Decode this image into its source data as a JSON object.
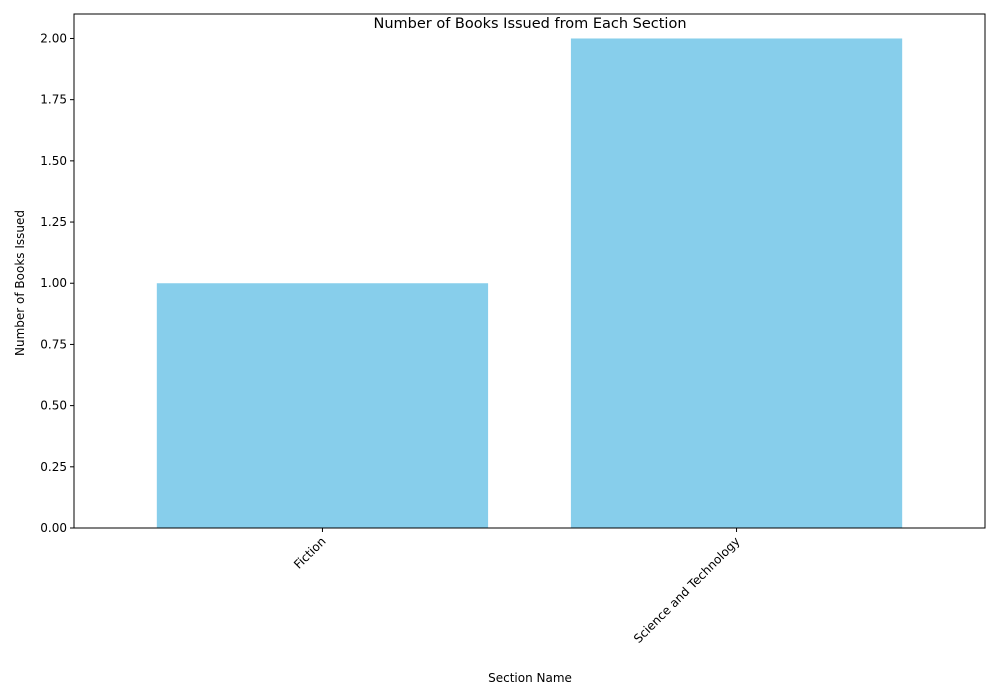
{
  "chart_data": {
    "type": "bar",
    "title": "Number of Books Issued from Each Section",
    "xlabel": "Section Name",
    "ylabel": "Number of Books Issued",
    "categories": [
      "Fiction",
      "Science and Technology"
    ],
    "values": [
      1,
      2
    ],
    "ylim": [
      0,
      2.1
    ],
    "yticks": [
      "0.00",
      "0.25",
      "0.50",
      "0.75",
      "1.00",
      "1.25",
      "1.50",
      "1.75",
      "2.00"
    ],
    "bar_color": "#87CEEB",
    "grid": false,
    "legend": "none"
  }
}
